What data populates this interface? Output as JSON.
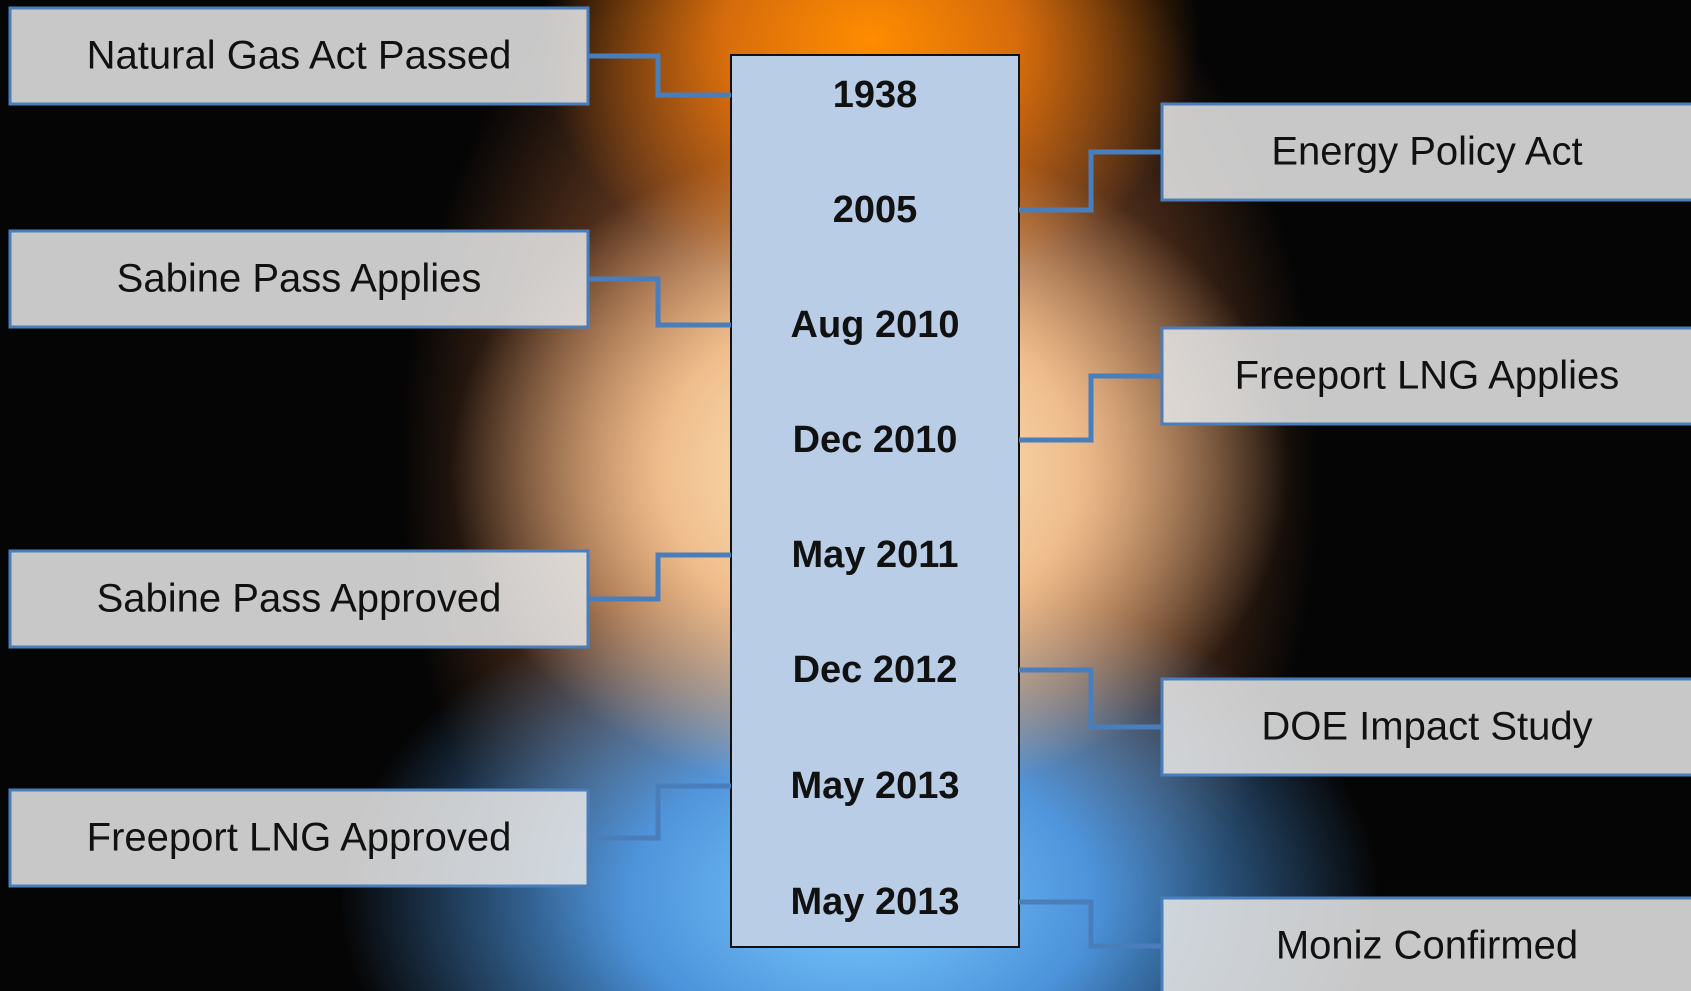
{
  "timeline": {
    "dates": [
      "1938",
      "2005",
      "Aug 2010",
      "Dec 2010",
      "May 2011",
      "Dec 2012",
      "May 2013",
      "May 2013"
    ],
    "events": [
      "Natural Gas Act Passed",
      "Energy Policy Act",
      "Sabine Pass Applies",
      "Freeport LNG Applies",
      "Sabine Pass Approved",
      "DOE Impact Study",
      "Freeport LNG Approved",
      "Moniz Confirmed"
    ]
  }
}
